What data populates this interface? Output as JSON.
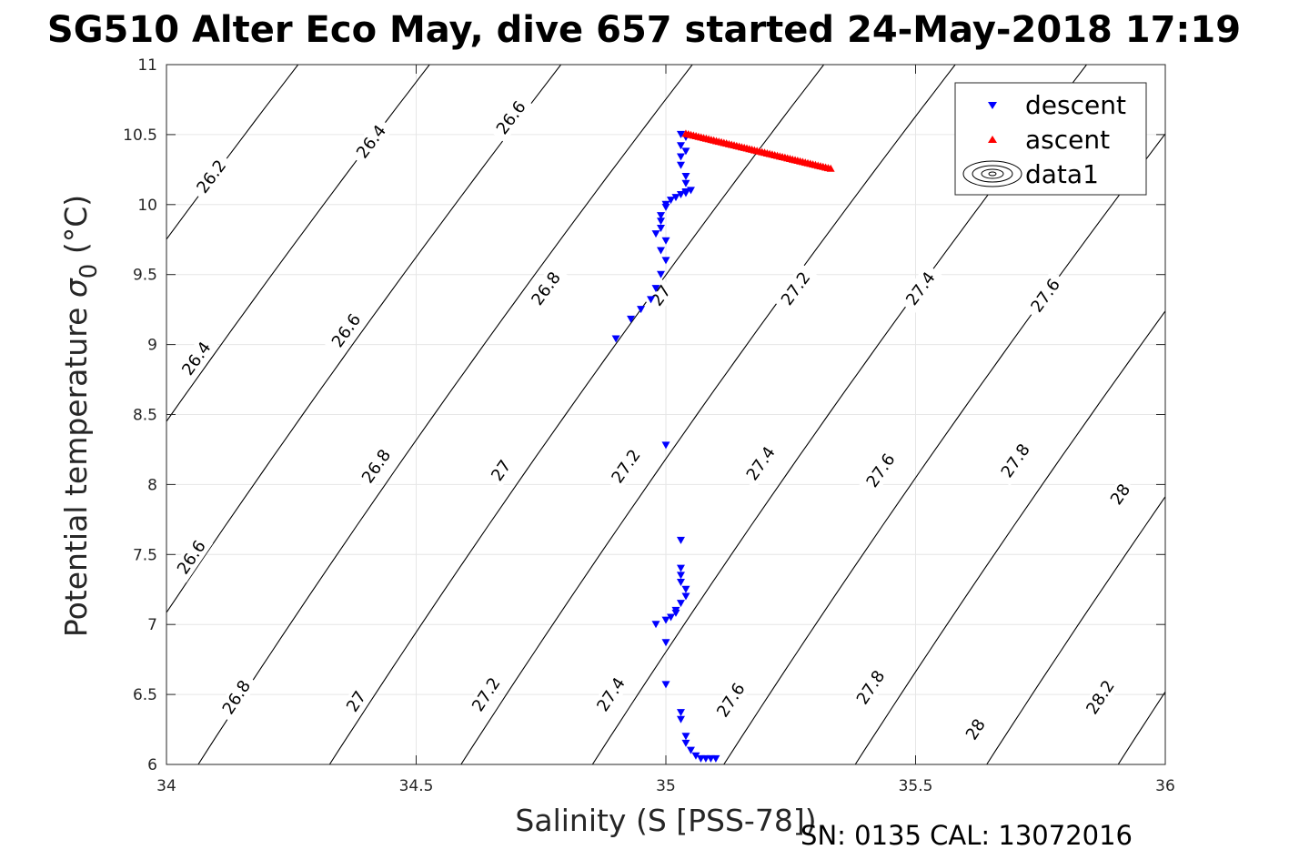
{
  "chart_data": {
    "type": "scatter",
    "title": "SG510 Alter Eco May, dive 657 started 24-May-2018 17:19",
    "xlabel": "Salinity (S [PSS-78])",
    "ylabel_text": "Potential temperature ",
    "ylabel_symbol": "σ",
    "ylabel_sub": "0",
    "ylabel_unit": " (°C)",
    "xlim": [
      34,
      36
    ],
    "ylim": [
      6,
      11
    ],
    "xticks": [
      34,
      34.5,
      35,
      35.5,
      36
    ],
    "yticks": [
      6,
      6.5,
      7,
      7.5,
      8,
      8.5,
      9,
      9.5,
      10,
      10.5,
      11
    ],
    "grid": true,
    "legend_position": "top-right",
    "footer": "SN: 0135  CAL: 13072016",
    "contours": {
      "levels": [
        26.2,
        26.4,
        26.6,
        26.8,
        27,
        27.2,
        27.4,
        27.6,
        27.8,
        28,
        28.2
      ],
      "level_labels": [
        "26.2",
        "26.4",
        "26.6",
        "26.8",
        "27",
        "27.2",
        "27.4",
        "27.6",
        "27.8",
        "28",
        "28.2"
      ],
      "labels": [
        {
          "text": "26.2",
          "s": 34.09,
          "t": 10.2
        },
        {
          "text": "26.4",
          "s": 34.41,
          "t": 10.45
        },
        {
          "text": "26.6",
          "s": 34.69,
          "t": 10.62
        },
        {
          "text": "26.4",
          "s": 34.06,
          "t": 8.9
        },
        {
          "text": "26.6",
          "s": 34.36,
          "t": 9.1
        },
        {
          "text": "26.8",
          "s": 34.76,
          "t": 9.4
        },
        {
          "text": "27",
          "s": 34.99,
          "t": 9.35
        },
        {
          "text": "27.2",
          "s": 35.26,
          "t": 9.4
        },
        {
          "text": "27.4",
          "s": 35.51,
          "t": 9.4
        },
        {
          "text": "27.6",
          "s": 35.76,
          "t": 9.35
        },
        {
          "text": "26.6",
          "s": 34.05,
          "t": 7.48
        },
        {
          "text": "26.8",
          "s": 34.42,
          "t": 8.13
        },
        {
          "text": "27",
          "s": 34.67,
          "t": 8.1
        },
        {
          "text": "27.2",
          "s": 34.92,
          "t": 8.13
        },
        {
          "text": "27.4",
          "s": 35.19,
          "t": 8.15
        },
        {
          "text": "27.6",
          "s": 35.43,
          "t": 8.1
        },
        {
          "text": "27.8",
          "s": 35.7,
          "t": 8.17
        },
        {
          "text": "28",
          "s": 35.91,
          "t": 7.93
        },
        {
          "text": "26.8",
          "s": 34.14,
          "t": 6.48
        },
        {
          "text": "27",
          "s": 34.38,
          "t": 6.45
        },
        {
          "text": "27.2",
          "s": 34.64,
          "t": 6.5
        },
        {
          "text": "27.4",
          "s": 34.89,
          "t": 6.5
        },
        {
          "text": "27.6",
          "s": 35.13,
          "t": 6.46
        },
        {
          "text": "27.8",
          "s": 35.41,
          "t": 6.55
        },
        {
          "text": "28",
          "s": 35.62,
          "t": 6.25
        },
        {
          "text": "28.2",
          "s": 35.87,
          "t": 6.48
        }
      ]
    },
    "series": [
      {
        "name": "descent",
        "marker": "triangle-down",
        "color": "#0000ff",
        "points": [
          [
            35.03,
            10.5
          ],
          [
            35.04,
            10.48
          ],
          [
            35.03,
            10.42
          ],
          [
            35.04,
            10.38
          ],
          [
            35.03,
            10.34
          ],
          [
            35.03,
            10.28
          ],
          [
            35.04,
            10.2
          ],
          [
            35.04,
            10.15
          ],
          [
            35.04,
            10.09
          ],
          [
            35.05,
            10.1
          ],
          [
            35.04,
            10.08
          ],
          [
            35.03,
            10.07
          ],
          [
            35.02,
            10.05
          ],
          [
            35.01,
            10.03
          ],
          [
            35.0,
            10.0
          ],
          [
            35.0,
            9.98
          ],
          [
            34.99,
            9.92
          ],
          [
            34.99,
            9.88
          ],
          [
            34.99,
            9.83
          ],
          [
            34.98,
            9.79
          ],
          [
            35.0,
            9.74
          ],
          [
            34.99,
            9.67
          ],
          [
            35.0,
            9.6
          ],
          [
            34.99,
            9.5
          ],
          [
            34.98,
            9.4
          ],
          [
            34.97,
            9.32
          ],
          [
            34.95,
            9.25
          ],
          [
            34.93,
            9.18
          ],
          [
            34.9,
            9.04
          ],
          [
            35.0,
            8.28
          ],
          [
            35.03,
            7.6
          ],
          [
            35.03,
            7.4
          ],
          [
            35.03,
            7.35
          ],
          [
            35.03,
            7.3
          ],
          [
            35.04,
            7.25
          ],
          [
            35.04,
            7.2
          ],
          [
            35.03,
            7.15
          ],
          [
            35.02,
            7.1
          ],
          [
            35.02,
            7.08
          ],
          [
            35.01,
            7.05
          ],
          [
            35.0,
            7.03
          ],
          [
            34.98,
            7.0
          ],
          [
            35.0,
            6.87
          ],
          [
            35.0,
            6.57
          ],
          [
            35.03,
            6.37
          ],
          [
            35.03,
            6.32
          ],
          [
            35.04,
            6.2
          ],
          [
            35.04,
            6.15
          ],
          [
            35.05,
            6.1
          ],
          [
            35.06,
            6.06
          ],
          [
            35.07,
            6.04
          ],
          [
            35.08,
            6.04
          ],
          [
            35.09,
            6.04
          ],
          [
            35.1,
            6.04
          ]
        ]
      },
      {
        "name": "ascent",
        "marker": "triangle-up",
        "color": "#ff0000",
        "segment": {
          "start": [
            35.04,
            10.51
          ],
          "end": [
            35.33,
            10.26
          ],
          "count": 58
        }
      },
      {
        "name": "data1",
        "marker": "contour-icon",
        "color": "#000000"
      }
    ]
  }
}
